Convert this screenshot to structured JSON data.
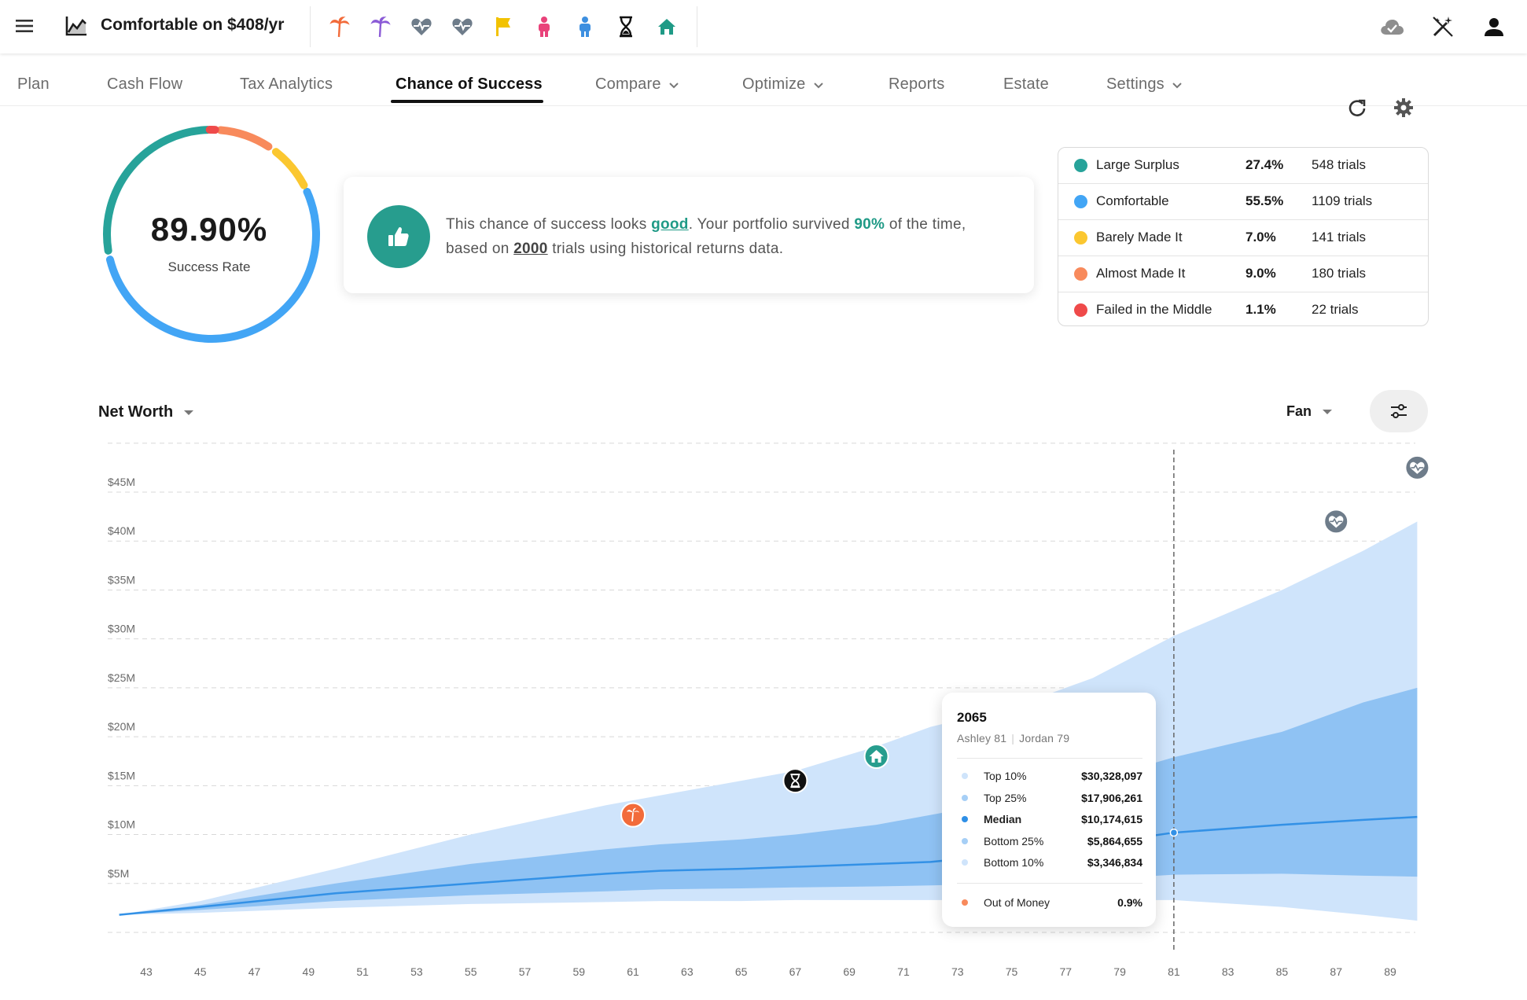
{
  "app": {
    "title": "Comfortable on $408/yr"
  },
  "milestones": [
    {
      "icon": "palm-tree-icon",
      "color": "#f26b3a"
    },
    {
      "icon": "palm-tree-icon",
      "color": "#8b5bd6"
    },
    {
      "icon": "heart-pulse-icon",
      "color": "#6e7c8a"
    },
    {
      "icon": "heart-pulse-icon",
      "color": "#6e7c8a"
    },
    {
      "icon": "flag-icon",
      "color": "#f2c200"
    },
    {
      "icon": "person-icon",
      "color": "#e9427a"
    },
    {
      "icon": "person-icon",
      "color": "#3d8fe0"
    },
    {
      "icon": "hourglass-icon",
      "color": "#111111"
    },
    {
      "icon": "home-icon",
      "color": "#1f9a86"
    }
  ],
  "tabs": [
    {
      "label": "Plan"
    },
    {
      "label": "Cash Flow"
    },
    {
      "label": "Tax Analytics"
    },
    {
      "label": "Chance of Success",
      "active": true
    },
    {
      "label": "Compare",
      "dropdown": true
    },
    {
      "label": "Optimize",
      "dropdown": true
    },
    {
      "label": "Reports"
    },
    {
      "label": "Estate"
    },
    {
      "label": "Settings",
      "dropdown": true
    }
  ],
  "success": {
    "rate_text": "89.90%",
    "rate": 0.899,
    "label": "Success Rate"
  },
  "message": {
    "p1": "This chance of success looks ",
    "quality": "good",
    "p2": ". Your portfolio survived ",
    "survived": "90%",
    "p3": " of the time, based on ",
    "trials": "2000",
    "p4": " trials using historical returns data."
  },
  "outcomes": [
    {
      "label": "Large Surplus",
      "pct": "27.4%",
      "trials": "548 trials",
      "color": "#27a39a"
    },
    {
      "label": "Comfortable",
      "pct": "55.5%",
      "trials": "1109 trials",
      "color": "#42a5f5"
    },
    {
      "label": "Barely Made It",
      "pct": "7.0%",
      "trials": "141 trials",
      "color": "#fbc730"
    },
    {
      "label": "Almost Made It",
      "pct": "9.0%",
      "trials": "180 trials",
      "color": "#f88a5c"
    },
    {
      "label": "Failed in the Middle",
      "pct": "1.1%",
      "trials": "22 trials",
      "color": "#ef4a4a"
    }
  ],
  "controls": {
    "metric": "Net Worth",
    "view": "Fan"
  },
  "chart_data": {
    "type": "area",
    "ylim": [
      0,
      50000000
    ],
    "ytick_labels": [
      "$5M",
      "$10M",
      "$15M",
      "$20M",
      "$25M",
      "$30M",
      "$35M",
      "$40M",
      "$45M"
    ],
    "xtick_labels": [
      "43",
      "45",
      "47",
      "49",
      "51",
      "53",
      "55",
      "57",
      "59",
      "61",
      "63",
      "65",
      "67",
      "69",
      "71",
      "73",
      "75",
      "77",
      "79",
      "81",
      "83",
      "85",
      "87",
      "89"
    ],
    "x": [
      42,
      45,
      50,
      55,
      60,
      62,
      65,
      67,
      70,
      72,
      75,
      78,
      81,
      85,
      88,
      90
    ],
    "series": [
      {
        "name": "Top 10%",
        "values": [
          1800000,
          3200000,
          6500000,
          10000000,
          13000000,
          14000000,
          15500000,
          16500000,
          19000000,
          21000000,
          23000000,
          26000000,
          30300000,
          35000000,
          39000000,
          42000000
        ]
      },
      {
        "name": "Top 25%",
        "values": [
          1800000,
          2800000,
          5000000,
          7000000,
          8500000,
          9000000,
          9500000,
          10000000,
          11000000,
          12000000,
          13500000,
          15500000,
          17900000,
          20500000,
          23500000,
          25000000
        ]
      },
      {
        "name": "Median",
        "values": [
          1800000,
          2600000,
          4000000,
          5000000,
          6000000,
          6300000,
          6500000,
          6700000,
          7000000,
          7200000,
          8000000,
          9000000,
          10200000,
          11000000,
          11500000,
          11800000
        ]
      },
      {
        "name": "Bottom 25%",
        "values": [
          1800000,
          2300000,
          3200000,
          3800000,
          4200000,
          4400000,
          4500000,
          4600000,
          4700000,
          4800000,
          5000000,
          5400000,
          5900000,
          6000000,
          5800000,
          5700000
        ]
      },
      {
        "name": "Bottom 10%",
        "values": [
          1800000,
          2000000,
          2500000,
          2900000,
          3100000,
          3200000,
          3200000,
          3300000,
          3300000,
          3300000,
          3300000,
          3300000,
          3300000,
          2600000,
          1800000,
          1200000
        ]
      }
    ],
    "grid": true,
    "hover_x": 81,
    "event_markers": [
      {
        "icon": "palm-tree-icon",
        "x": 61,
        "value": 12000000,
        "color": "#f26b3a"
      },
      {
        "icon": "hourglass-icon",
        "x": 67,
        "value": 15500000,
        "color": "#111111"
      },
      {
        "icon": "home-icon",
        "x": 70,
        "value": 18000000,
        "color": "#279d8e"
      },
      {
        "icon": "heart-pulse-icon",
        "x": 87,
        "value": 42000000,
        "color": "#6e7c8a"
      },
      {
        "icon": "heart-pulse-icon",
        "x": 90,
        "value": 47500000,
        "color": "#6e7c8a"
      }
    ]
  },
  "tooltip": {
    "year": "2065",
    "person1": "Ashley 81",
    "person2": "Jordan 79",
    "rows": [
      {
        "label": "Top 10%",
        "value": "$30,328,097",
        "color": "#cfe4fb"
      },
      {
        "label": "Top 25%",
        "value": "$17,906,261",
        "color": "#a6cff6"
      },
      {
        "label": "Median",
        "value": "$10,174,615",
        "color": "#2e8fe6",
        "bold": true
      },
      {
        "label": "Bottom 25%",
        "value": "$5,864,655",
        "color": "#a6cff6"
      },
      {
        "label": "Bottom 10%",
        "value": "$3,346,834",
        "color": "#cfe4fb"
      }
    ],
    "oom": {
      "label": "Out of Money",
      "value": "0.9%",
      "color": "#f88a5c"
    }
  }
}
